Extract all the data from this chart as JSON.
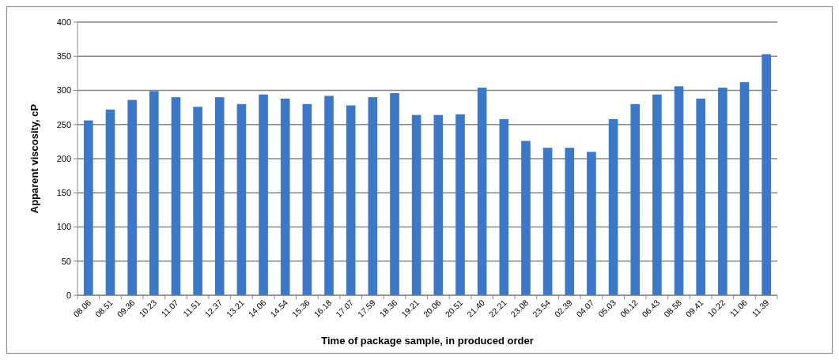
{
  "chart_data": {
    "type": "bar",
    "xlabel": "Time of package sample, in produced order",
    "ylabel": "Apparent viscosity, cP",
    "categories": [
      "08.06",
      "08.51",
      "09.36",
      "10.23",
      "11.07",
      "11.51",
      "12.37",
      "13.21",
      "14.06",
      "14.54",
      "15.36",
      "16.18",
      "17.07",
      "17.59",
      "18.36",
      "19.21",
      "20.06",
      "20.51",
      "21.40",
      "22.21",
      "23.08",
      "23.54",
      "02.39",
      "04.07",
      "05.03",
      "06.12",
      "06.43",
      "08.58",
      "09.41",
      "10.22",
      "11.06",
      "11.39"
    ],
    "values": [
      256,
      272,
      286,
      299,
      290,
      276,
      290,
      280,
      294,
      288,
      280,
      292,
      278,
      290,
      296,
      264,
      264,
      265,
      304,
      258,
      226,
      216,
      216,
      210,
      258,
      280,
      294,
      306,
      288,
      304,
      312,
      353
    ],
    "color": "#3b78c9",
    "ylim": [
      0,
      400
    ],
    "yticks": [
      0,
      50,
      100,
      150,
      200,
      250,
      300,
      350,
      400
    ],
    "grid": "y"
  }
}
